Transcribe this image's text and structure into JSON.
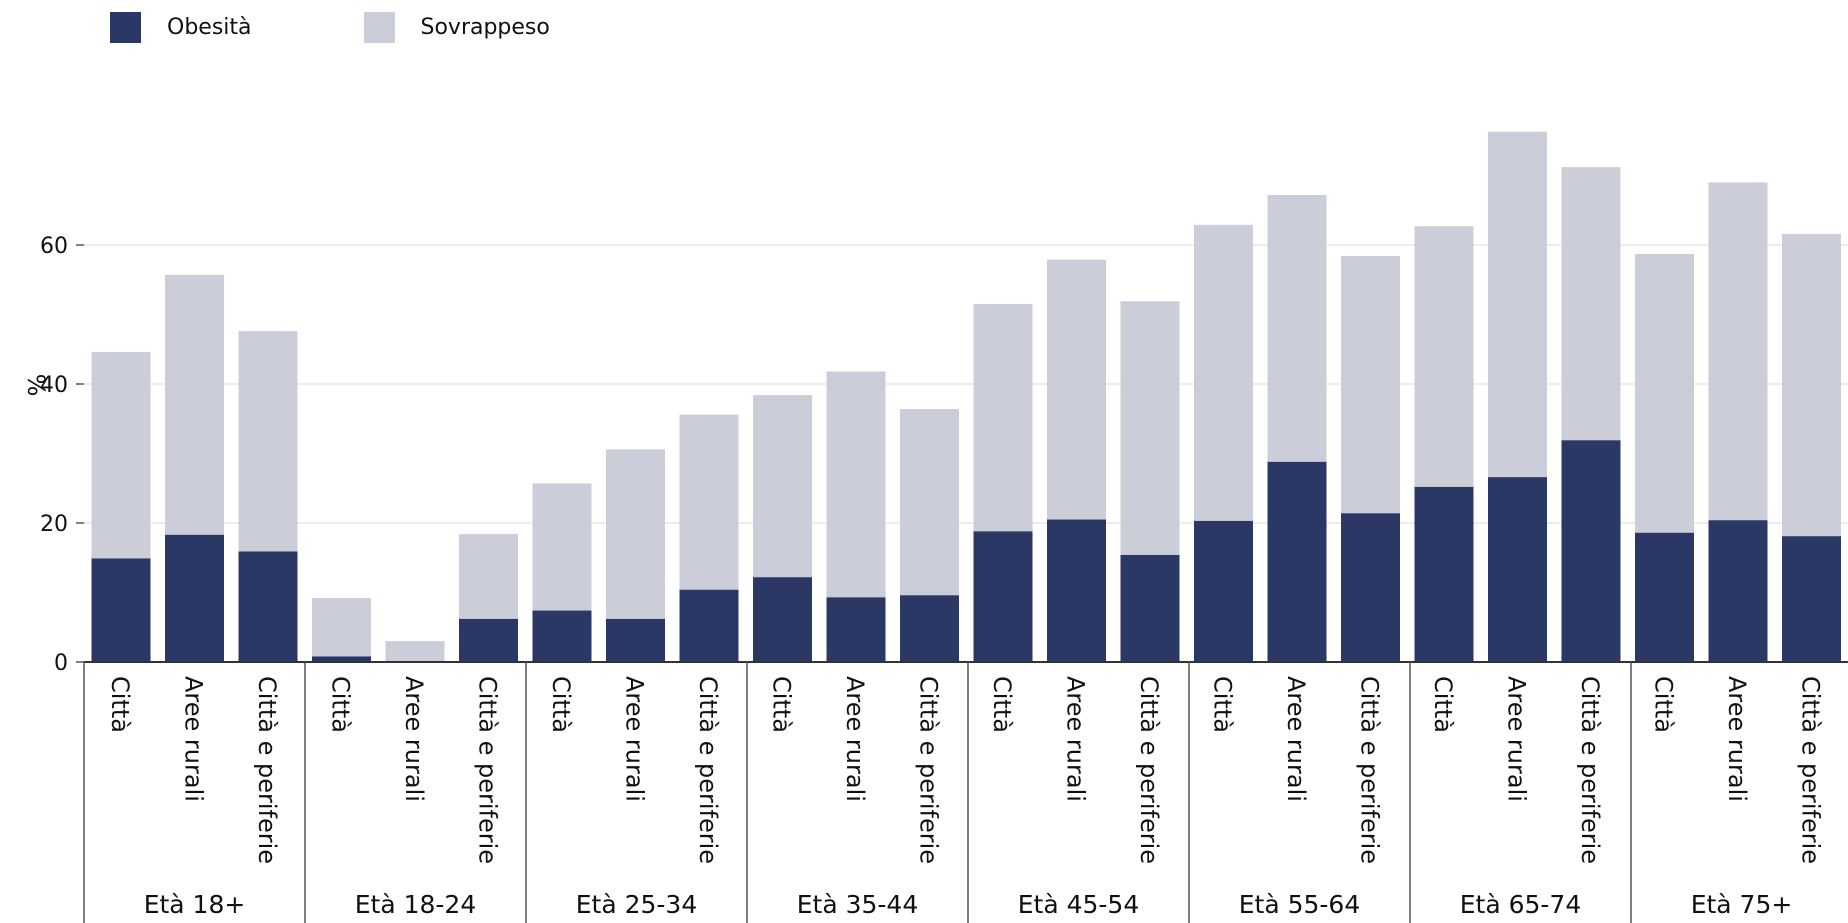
{
  "chart_data": {
    "type": "bar",
    "stacked": true,
    "ylabel": "%",
    "ylim": [
      0,
      78
    ],
    "yticks": [
      0,
      20,
      40,
      60
    ],
    "grid": true,
    "legend_position": "top-left",
    "colors": {
      "Obesità": "#2b3764",
      "Sovrappeso": "#cbcdd9"
    },
    "groups": [
      {
        "label": "Età 18+",
        "categories": [
          "Città",
          "Aree rurali",
          "Città e periferie"
        ]
      },
      {
        "label": "Età 18-24",
        "categories": [
          "Città",
          "Aree rurali",
          "Città e periferie"
        ]
      },
      {
        "label": "Età 25-34",
        "categories": [
          "Città",
          "Aree rurali",
          "Città e periferie"
        ]
      },
      {
        "label": "Età 35-44",
        "categories": [
          "Città",
          "Aree rurali",
          "Città e periferie"
        ]
      },
      {
        "label": "Età 45-54",
        "categories": [
          "Città",
          "Aree rurali",
          "Città e periferie"
        ]
      },
      {
        "label": "Età 55-64",
        "categories": [
          "Città",
          "Aree rurali",
          "Città e periferie"
        ]
      },
      {
        "label": "Età 65-74",
        "categories": [
          "Città",
          "Aree rurali",
          "Città e periferie"
        ]
      },
      {
        "label": "Età 75+",
        "categories": [
          "Città",
          "Aree rurali",
          "Città e periferie"
        ]
      }
    ],
    "series": [
      {
        "name": "Obesità",
        "values": [
          14.9,
          18.3,
          15.9,
          0.8,
          0.0,
          6.2,
          7.4,
          6.2,
          10.4,
          12.2,
          9.3,
          9.6,
          18.8,
          20.5,
          15.4,
          20.3,
          28.8,
          21.4,
          25.2,
          26.6,
          31.9,
          18.6,
          20.4,
          18.1
        ]
      },
      {
        "name": "Sovrappeso",
        "values": [
          29.7,
          37.4,
          31.7,
          8.4,
          3.0,
          12.2,
          18.3,
          24.4,
          25.2,
          26.2,
          32.5,
          26.8,
          32.7,
          37.4,
          36.5,
          42.6,
          38.4,
          37.0,
          37.5,
          49.7,
          39.3,
          40.1,
          48.6,
          43.5
        ]
      }
    ]
  }
}
